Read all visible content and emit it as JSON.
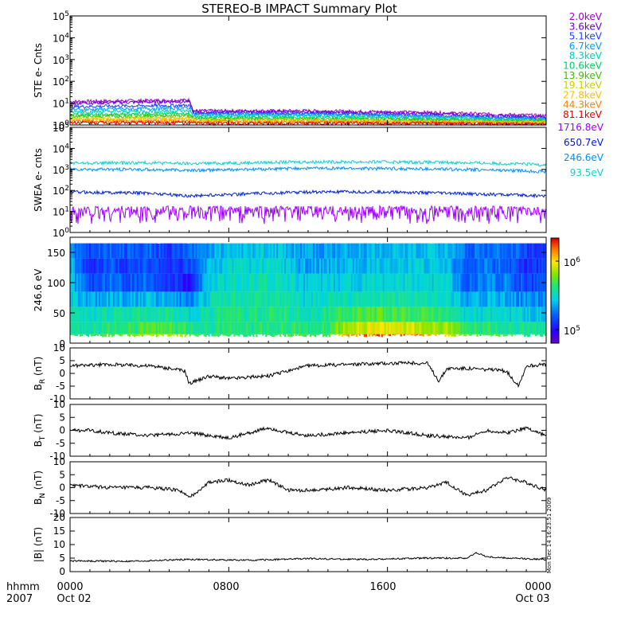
{
  "title": "STEREO-B IMPACT Summary Plot",
  "side_stamp": "Mon Dec 14 16:23:51 2009",
  "time_axis": {
    "row1": [
      "0000",
      "0800",
      "1600",
      "0000"
    ],
    "row2": [
      "Oct 02",
      "",
      "",
      "Oct 03"
    ],
    "label_row1": "hhmm",
    "label_row2": "2007"
  },
  "chart_data": [
    {
      "type": "line",
      "id": "ste",
      "ylabel": "STE e- Cnts",
      "yscale": "log",
      "ylim": [
        1,
        100000
      ],
      "ytick_labels": [
        "10^0",
        "10^1",
        "10^2",
        "10^3",
        "10^4",
        "10^5"
      ],
      "x": [
        0,
        6,
        6.2,
        12,
        18,
        22,
        24
      ],
      "series": [
        {
          "name": "2.0keV",
          "color": "#a000c8",
          "values": [
            12,
            14,
            4.5,
            4.5,
            3.8,
            3.0,
            2.7
          ]
        },
        {
          "name": "3.6keV",
          "color": "#7000d0",
          "values": [
            10,
            12,
            4.0,
            4.0,
            3.3,
            2.6,
            2.4
          ]
        },
        {
          "name": "5.1keV",
          "color": "#2040ff",
          "values": [
            7,
            8,
            3.5,
            3.4,
            2.8,
            2.3,
            2.1
          ]
        },
        {
          "name": "6.7keV",
          "color": "#00a0ff",
          "values": [
            5,
            6,
            3.0,
            3.0,
            2.5,
            2.0,
            1.9
          ]
        },
        {
          "name": "8.3keV",
          "color": "#00d0c0",
          "values": [
            4,
            4.5,
            2.6,
            2.6,
            2.2,
            1.8,
            1.7
          ]
        },
        {
          "name": "10.6keV",
          "color": "#00d060",
          "values": [
            3,
            3.4,
            2.2,
            2.2,
            1.9,
            1.6,
            1.6
          ]
        },
        {
          "name": "13.9keV",
          "color": "#40c000",
          "values": [
            2.5,
            2.7,
            1.9,
            1.9,
            1.7,
            1.5,
            1.5
          ]
        },
        {
          "name": "19.1keV",
          "color": "#c8d000",
          "values": [
            2.0,
            2.1,
            1.7,
            1.7,
            1.5,
            1.4,
            1.4
          ]
        },
        {
          "name": "27.8keV",
          "color": "#ffc000",
          "values": [
            1.7,
            1.8,
            1.5,
            1.5,
            1.4,
            1.3,
            1.3
          ]
        },
        {
          "name": "44.3keV",
          "color": "#ff8000",
          "values": [
            1.5,
            1.5,
            1.4,
            1.4,
            1.3,
            1.2,
            1.2
          ]
        },
        {
          "name": "81.1keV",
          "color": "#e00000",
          "values": [
            1.3,
            1.3,
            1.2,
            1.2,
            1.2,
            1.1,
            1.1
          ]
        }
      ]
    },
    {
      "type": "line",
      "id": "swea",
      "ylabel": "SWEA e- cnts",
      "yscale": "log",
      "ylim": [
        1,
        100000
      ],
      "ytick_labels": [
        "10^0",
        "10^1",
        "10^2",
        "10^3",
        "10^4",
        "10^5"
      ],
      "x": [
        0,
        4,
        6,
        9,
        12,
        16,
        20,
        24
      ],
      "series": [
        {
          "name": "1716.8eV",
          "color": "#a000ff",
          "values": [
            10,
            10,
            10,
            10,
            10,
            10,
            10,
            10
          ]
        },
        {
          "name": "650.7eV",
          "color": "#0020d0",
          "values": [
            85,
            75,
            55,
            70,
            85,
            85,
            70,
            55
          ]
        },
        {
          "name": "246.6eV",
          "color": "#0090ff",
          "values": [
            1000,
            1000,
            900,
            1000,
            1150,
            1100,
            1000,
            800
          ]
        },
        {
          "name": "93.5eV",
          "color": "#10d0d0",
          "values": [
            2000,
            2100,
            1900,
            2100,
            2300,
            2300,
            2100,
            1700
          ]
        }
      ]
    },
    {
      "type": "heatmap",
      "id": "pad",
      "ylabel": "246.6 eV",
      "ylim": [
        0,
        175
      ],
      "yticks": [
        0,
        50,
        100,
        150
      ],
      "colorbar_ticks": [
        "10^5",
        "10^6"
      ],
      "band_boundaries": [
        0,
        15,
        35,
        60,
        85,
        115,
        140,
        165
      ],
      "x": [
        0,
        1,
        2,
        3,
        4,
        5,
        6,
        7,
        8,
        9,
        10,
        11,
        12,
        13,
        14,
        15,
        16,
        17,
        18,
        19,
        20,
        21,
        22,
        23
      ],
      "z": [
        [
          0.55,
          0.5,
          0.48,
          0.45,
          0.42,
          0.38,
          0.36
        ],
        [
          0.55,
          0.5,
          0.45,
          0.35,
          0.22,
          0.2,
          0.22
        ],
        [
          0.62,
          0.55,
          0.5,
          0.4,
          0.28,
          0.25,
          0.28
        ],
        [
          0.65,
          0.58,
          0.5,
          0.38,
          0.25,
          0.22,
          0.25
        ],
        [
          0.7,
          0.6,
          0.52,
          0.4,
          0.28,
          0.25,
          0.28
        ],
        [
          0.72,
          0.6,
          0.5,
          0.35,
          0.2,
          0.18,
          0.2
        ],
        [
          0.65,
          0.55,
          0.45,
          0.3,
          0.15,
          0.25,
          0.28
        ],
        [
          0.55,
          0.52,
          0.5,
          0.45,
          0.4,
          0.38,
          0.36
        ],
        [
          0.55,
          0.54,
          0.52,
          0.5,
          0.48,
          0.44,
          0.4
        ],
        [
          0.55,
          0.54,
          0.52,
          0.5,
          0.47,
          0.42,
          0.4
        ],
        [
          0.56,
          0.55,
          0.54,
          0.52,
          0.5,
          0.46,
          0.42
        ],
        [
          0.6,
          0.56,
          0.52,
          0.48,
          0.44,
          0.4,
          0.38
        ],
        [
          0.55,
          0.52,
          0.48,
          0.44,
          0.4,
          0.36,
          0.34
        ],
        [
          0.58,
          0.56,
          0.52,
          0.48,
          0.42,
          0.38,
          0.36
        ],
        [
          0.88,
          0.72,
          0.58,
          0.48,
          0.42,
          0.38,
          0.36
        ],
        [
          0.9,
          0.74,
          0.6,
          0.5,
          0.44,
          0.4,
          0.38
        ],
        [
          0.92,
          0.75,
          0.6,
          0.5,
          0.44,
          0.4,
          0.38
        ],
        [
          0.9,
          0.74,
          0.58,
          0.5,
          0.45,
          0.42,
          0.4
        ],
        [
          0.85,
          0.7,
          0.56,
          0.48,
          0.44,
          0.42,
          0.4
        ],
        [
          0.8,
          0.68,
          0.55,
          0.48,
          0.44,
          0.4,
          0.38
        ],
        [
          0.62,
          0.55,
          0.45,
          0.35,
          0.28,
          0.25,
          0.28
        ],
        [
          0.6,
          0.55,
          0.45,
          0.38,
          0.32,
          0.3,
          0.3
        ],
        [
          0.58,
          0.52,
          0.45,
          0.38,
          0.32,
          0.28,
          0.3
        ],
        [
          0.55,
          0.5,
          0.42,
          0.32,
          0.22,
          0.2,
          0.22
        ]
      ]
    },
    {
      "type": "line",
      "id": "br",
      "ylabel": "B_R (nT)",
      "ylim": [
        -10,
        10
      ],
      "yticks": [
        -10,
        -5,
        0,
        5,
        10
      ],
      "x": [
        0,
        2,
        4,
        5.8,
        6,
        7,
        8,
        10,
        12,
        14,
        16,
        18,
        18.6,
        19,
        20,
        22,
        22.6,
        23,
        24
      ],
      "values": [
        3,
        3.5,
        3,
        1,
        -4,
        -1,
        -2,
        -1,
        3,
        3.5,
        4,
        4,
        -3,
        2,
        2,
        1,
        -5,
        3,
        3.5
      ]
    },
    {
      "type": "line",
      "id": "bt",
      "ylabel": "B_T (nT)",
      "ylim": [
        -10,
        10
      ],
      "yticks": [
        -10,
        -5,
        0,
        5,
        10
      ],
      "x": [
        0,
        1,
        2,
        4,
        6,
        8,
        9,
        10,
        11,
        12,
        14,
        16,
        18,
        20,
        21,
        22,
        23,
        24
      ],
      "values": [
        0,
        0,
        -1,
        -2,
        -1,
        -3,
        -1,
        1,
        -1,
        -2,
        -1,
        0,
        -2,
        -3,
        0,
        -1,
        1,
        -2
      ]
    },
    {
      "type": "line",
      "id": "bn",
      "ylabel": "B_N (nT)",
      "ylim": [
        -10,
        10
      ],
      "yticks": [
        -10,
        -5,
        0,
        5,
        10
      ],
      "x": [
        0,
        2,
        4,
        5.5,
        6,
        7,
        8,
        9,
        10,
        11,
        12,
        14,
        16,
        18,
        19,
        20,
        21,
        22,
        23,
        24
      ],
      "values": [
        1,
        0,
        0,
        -1,
        -4,
        2,
        3,
        1,
        3,
        -1,
        -1,
        0,
        -1,
        0,
        2,
        -3,
        -1,
        4,
        2,
        -1
      ]
    },
    {
      "type": "line",
      "id": "bmag",
      "ylabel": "|B| (nT)",
      "ylim": [
        0,
        20
      ],
      "yticks": [
        0,
        5,
        10,
        15,
        20
      ],
      "x": [
        0,
        3,
        6,
        9,
        12,
        15,
        18,
        20,
        20.5,
        21,
        22,
        24
      ],
      "values": [
        4,
        3.8,
        4.5,
        4.2,
        4.8,
        4.5,
        5,
        5,
        7,
        5.5,
        5,
        4.5
      ]
    }
  ]
}
